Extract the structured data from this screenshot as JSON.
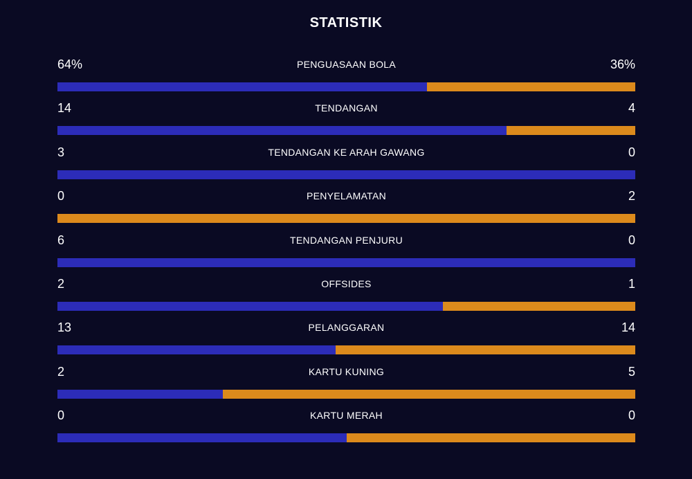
{
  "title": "STATISTIK",
  "colors": {
    "background": "#0a0a23",
    "home": "#2c2cb8",
    "away": "#dc8a1c"
  },
  "stats": [
    {
      "label": "PENGUASAAN BOLA",
      "home": "64%",
      "away": "36%",
      "home_share": 0.64
    },
    {
      "label": "TENDANGAN",
      "home": "14",
      "away": "4",
      "home_share": 0.7778
    },
    {
      "label": "TENDANGAN KE ARAH GAWANG",
      "home": "3",
      "away": "0",
      "home_share": 1.0
    },
    {
      "label": "PENYELAMATAN",
      "home": "0",
      "away": "2",
      "home_share": 0.0
    },
    {
      "label": "TENDANGAN PENJURU",
      "home": "6",
      "away": "0",
      "home_share": 1.0
    },
    {
      "label": "OFFSIDES",
      "home": "2",
      "away": "1",
      "home_share": 0.6667
    },
    {
      "label": "PELANGGARAN",
      "home": "13",
      "away": "14",
      "home_share": 0.4815
    },
    {
      "label": "KARTU KUNING",
      "home": "2",
      "away": "5",
      "home_share": 0.2857
    },
    {
      "label": "KARTU MERAH",
      "home": "0",
      "away": "0",
      "home_share": 0.5
    }
  ]
}
